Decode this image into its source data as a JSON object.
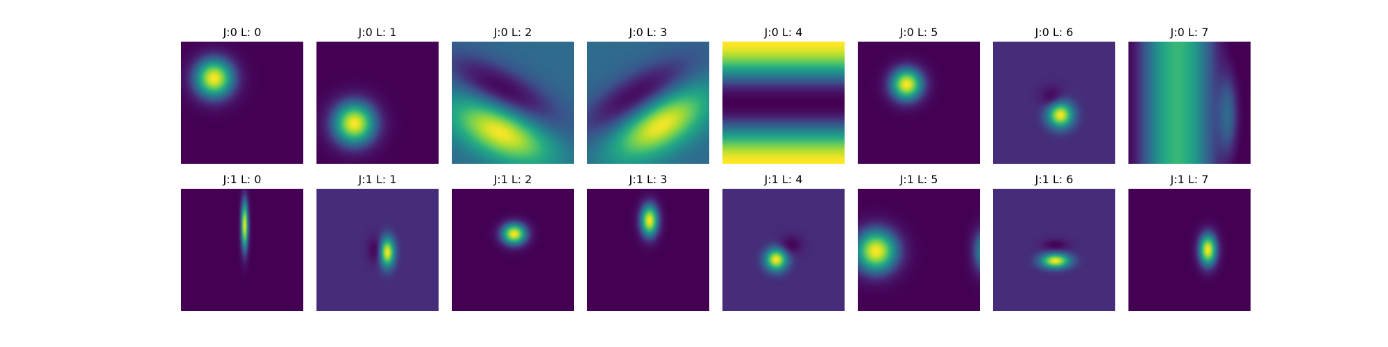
{
  "chart_data": {
    "type": "heatmap",
    "colormap": "viridis",
    "rows": 2,
    "cols": 8,
    "panels": [
      {
        "title": "J:0 L: 0",
        "bg": 0.0,
        "blobs": [
          {
            "cx": 0.27,
            "cy": 0.3,
            "sx": 0.11,
            "sy": 0.11,
            "a": 1.0,
            "amp": 1.0
          }
        ]
      },
      {
        "title": "J:0 L: 1",
        "bg": 0.0,
        "blobs": [
          {
            "cx": 0.31,
            "cy": 0.67,
            "sx": 0.12,
            "sy": 0.12,
            "a": 0.0,
            "amp": 1.0
          }
        ]
      },
      {
        "title": "J:0 L: 2",
        "bg": 0.35,
        "waves": [
          {
            "type": "blob",
            "cx": 0.42,
            "cy": 0.4,
            "sx": 0.35,
            "sy": 0.12,
            "a": 0.5,
            "amp": -0.35
          }
        ],
        "blobs": [
          {
            "cx": 0.4,
            "cy": 0.74,
            "sx": 0.3,
            "sy": 0.14,
            "a": 0.45,
            "amp": 0.65
          }
        ]
      },
      {
        "title": "J:0 L: 3",
        "bg": 0.35,
        "waves": [
          {
            "type": "blob",
            "cx": 0.4,
            "cy": 0.45,
            "sx": 0.35,
            "sy": 0.12,
            "a": -0.55,
            "amp": -0.35
          }
        ],
        "blobs": [
          {
            "cx": 0.6,
            "cy": 0.68,
            "sx": 0.3,
            "sy": 0.14,
            "a": -0.55,
            "amp": 0.65
          }
        ]
      },
      {
        "title": "J:0 L: 4",
        "stripes": true
      },
      {
        "title": "J:0 L: 5",
        "bg": 0.0,
        "blobs": [
          {
            "cx": 0.4,
            "cy": 0.35,
            "sx": 0.09,
            "sy": 0.09,
            "a": 0.0,
            "amp": 1.0
          }
        ]
      },
      {
        "title": "J:0 L: 6",
        "bg": 0.15,
        "blobs": [
          {
            "cx": 0.55,
            "cy": 0.6,
            "sx": 0.07,
            "sy": 0.07,
            "a": 0.0,
            "amp": 0.85
          },
          {
            "cx": 0.48,
            "cy": 0.46,
            "sx": 0.06,
            "sy": 0.06,
            "a": 0.0,
            "amp": -0.15
          }
        ]
      },
      {
        "title": "J:0 L: 7",
        "vertical_wave": true
      },
      {
        "title": "J:1 L: 0",
        "bg": 0.0,
        "blobs": [
          {
            "cx": 0.52,
            "cy": 0.3,
            "sx": 0.02,
            "sy": 0.14,
            "a": 0.0,
            "amp": 1.0
          }
        ]
      },
      {
        "title": "J:1 L: 1",
        "bg": 0.15,
        "blobs": [
          {
            "cx": 0.58,
            "cy": 0.52,
            "sx": 0.04,
            "sy": 0.08,
            "a": 0.0,
            "amp": 0.85
          },
          {
            "cx": 0.48,
            "cy": 0.5,
            "sx": 0.04,
            "sy": 0.07,
            "a": 0.0,
            "amp": -0.15
          }
        ]
      },
      {
        "title": "J:1 L: 2",
        "bg": 0.0,
        "blobs": [
          {
            "cx": 0.51,
            "cy": 0.37,
            "sx": 0.07,
            "sy": 0.06,
            "a": 0.0,
            "amp": 1.0
          }
        ]
      },
      {
        "title": "J:1 L: 3",
        "bg": 0.0,
        "blobs": [
          {
            "cx": 0.51,
            "cy": 0.26,
            "sx": 0.05,
            "sy": 0.09,
            "a": 0.0,
            "amp": 1.0
          }
        ]
      },
      {
        "title": "J:1 L: 4",
        "bg": 0.15,
        "blobs": [
          {
            "cx": 0.44,
            "cy": 0.58,
            "sx": 0.06,
            "sy": 0.06,
            "a": 0.0,
            "amp": 0.85
          },
          {
            "cx": 0.56,
            "cy": 0.46,
            "sx": 0.06,
            "sy": 0.05,
            "a": 0.0,
            "amp": -0.15
          }
        ]
      },
      {
        "title": "J:1 L: 5",
        "bg": 0.0,
        "blobs": [
          {
            "cx": 0.15,
            "cy": 0.51,
            "sx": 0.12,
            "sy": 0.12,
            "a": 0.0,
            "amp": 1.0
          },
          {
            "cx": 1.03,
            "cy": 0.51,
            "sx": 0.06,
            "sy": 0.12,
            "a": 0.0,
            "amp": 0.5
          }
        ]
      },
      {
        "title": "J:1 L: 6",
        "bg": 0.15,
        "blobs": [
          {
            "cx": 0.51,
            "cy": 0.59,
            "sx": 0.08,
            "sy": 0.04,
            "a": 0.0,
            "amp": 0.85
          },
          {
            "cx": 0.51,
            "cy": 0.46,
            "sx": 0.07,
            "sy": 0.03,
            "a": 0.0,
            "amp": -0.15
          }
        ]
      },
      {
        "title": "J:1 L: 7",
        "bg": 0.0,
        "blobs": [
          {
            "cx": 0.65,
            "cy": 0.5,
            "sx": 0.05,
            "sy": 0.09,
            "a": 0.0,
            "amp": 1.0
          }
        ]
      }
    ]
  }
}
